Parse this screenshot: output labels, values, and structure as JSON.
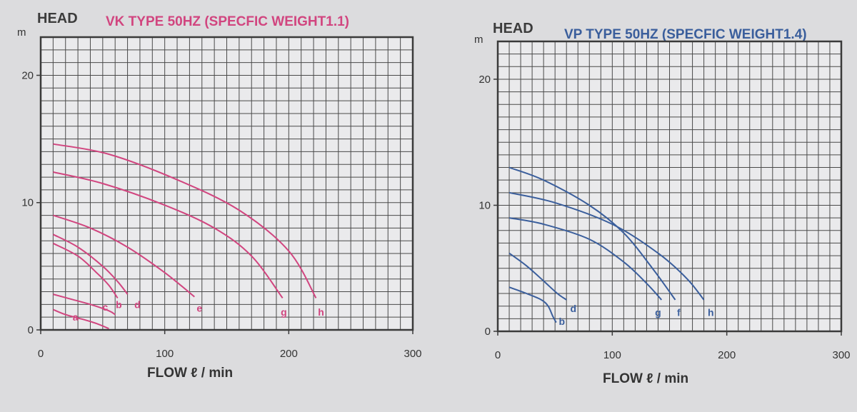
{
  "chart_data": [
    {
      "type": "line",
      "head_label": "HEAD",
      "title": "VK TYPE 50HZ (SPECFIC WEIGHT1.1)",
      "ylabel": "m",
      "xlabel": "FLOW ℓ / min",
      "xlim": [
        0,
        300
      ],
      "ylim": [
        0,
        23
      ],
      "x_ticks": [
        "0",
        "100",
        "200",
        "300"
      ],
      "y_ticks": [
        "0",
        "10",
        "20"
      ],
      "color": "#d1457f",
      "grid": true,
      "series": [
        {
          "name": "a",
          "points": [
            [
              10,
              1.6
            ],
            [
              20,
              1.2
            ],
            [
              35,
              0.8
            ],
            [
              45,
              0.5
            ],
            [
              55,
              0.1
            ]
          ],
          "label_at": [
            28,
            1.0
          ]
        },
        {
          "name": "c",
          "points": [
            [
              10,
              2.8
            ],
            [
              25,
              2.4
            ],
            [
              40,
              2.0
            ],
            [
              55,
              1.5
            ],
            [
              60,
              1.2
            ]
          ],
          "label_at": [
            52,
            1.8
          ]
        },
        {
          "name": "b",
          "points": [
            [
              10,
              6.8
            ],
            [
              30,
              5.8
            ],
            [
              45,
              4.5
            ],
            [
              55,
              3.5
            ],
            [
              62,
              2.5
            ]
          ],
          "label_at": [
            63,
            2.0
          ]
        },
        {
          "name": "d",
          "points": [
            [
              10,
              7.5
            ],
            [
              30,
              6.5
            ],
            [
              50,
              5.0
            ],
            [
              62,
              3.8
            ],
            [
              70,
              2.8
            ]
          ],
          "label_at": [
            78,
            2.0
          ]
        },
        {
          "name": "e",
          "points": [
            [
              10,
              9.0
            ],
            [
              40,
              8.0
            ],
            [
              70,
              6.5
            ],
            [
              100,
              4.5
            ],
            [
              124,
              2.6
            ]
          ],
          "label_at": [
            128,
            1.7
          ]
        },
        {
          "name": "g",
          "points": [
            [
              10,
              12.4
            ],
            [
              50,
              11.5
            ],
            [
              100,
              9.8
            ],
            [
              140,
              8.0
            ],
            [
              170,
              5.8
            ],
            [
              195,
              2.5
            ]
          ],
          "label_at": [
            196,
            1.4
          ]
        },
        {
          "name": "h",
          "points": [
            [
              10,
              14.6
            ],
            [
              55,
              13.8
            ],
            [
              110,
              11.8
            ],
            [
              160,
              9.4
            ],
            [
              200,
              6.2
            ],
            [
              222,
              2.5
            ]
          ],
          "label_at": [
            226,
            1.4
          ]
        }
      ]
    },
    {
      "type": "line",
      "head_label": "HEAD",
      "title": "VP TYPE 50HZ (SPECFIC WEIGHT1.4)",
      "ylabel": "m",
      "xlabel": "FLOW ℓ / min",
      "xlim": [
        0,
        300
      ],
      "ylim": [
        0,
        23
      ],
      "x_ticks": [
        "0",
        "100",
        "200",
        "300"
      ],
      "y_ticks": [
        "0",
        "10",
        "20"
      ],
      "color": "#3a5e9c",
      "grid": true,
      "series": [
        {
          "name": "b",
          "points": [
            [
              10,
              3.5
            ],
            [
              25,
              3.0
            ],
            [
              38,
              2.5
            ],
            [
              44,
              2.0
            ],
            [
              48,
              1.2
            ],
            [
              51,
              0.7
            ]
          ],
          "label_at": [
            56,
            0.8
          ]
        },
        {
          "name": "d",
          "points": [
            [
              10,
              6.2
            ],
            [
              25,
              5.2
            ],
            [
              40,
              4.0
            ],
            [
              52,
              3.0
            ],
            [
              60,
              2.5
            ]
          ],
          "label_at": [
            66,
            1.8
          ]
        },
        {
          "name": "g",
          "points": [
            [
              10,
              9.0
            ],
            [
              40,
              8.5
            ],
            [
              80,
              7.3
            ],
            [
              110,
              5.5
            ],
            [
              130,
              3.8
            ],
            [
              143,
              2.5
            ]
          ],
          "label_at": [
            140,
            1.5
          ]
        },
        {
          "name": "f",
          "points": [
            [
              10,
              13.0
            ],
            [
              40,
              12.0
            ],
            [
              80,
              10.0
            ],
            [
              110,
              7.8
            ],
            [
              135,
              5.0
            ],
            [
              155,
              2.5
            ]
          ],
          "label_at": [
            158,
            1.5
          ]
        },
        {
          "name": "h",
          "points": [
            [
              10,
              11.0
            ],
            [
              50,
              10.2
            ],
            [
              100,
              8.5
            ],
            [
              140,
              6.2
            ],
            [
              165,
              4.2
            ],
            [
              180,
              2.5
            ]
          ],
          "label_at": [
            186,
            1.5
          ]
        }
      ]
    }
  ]
}
